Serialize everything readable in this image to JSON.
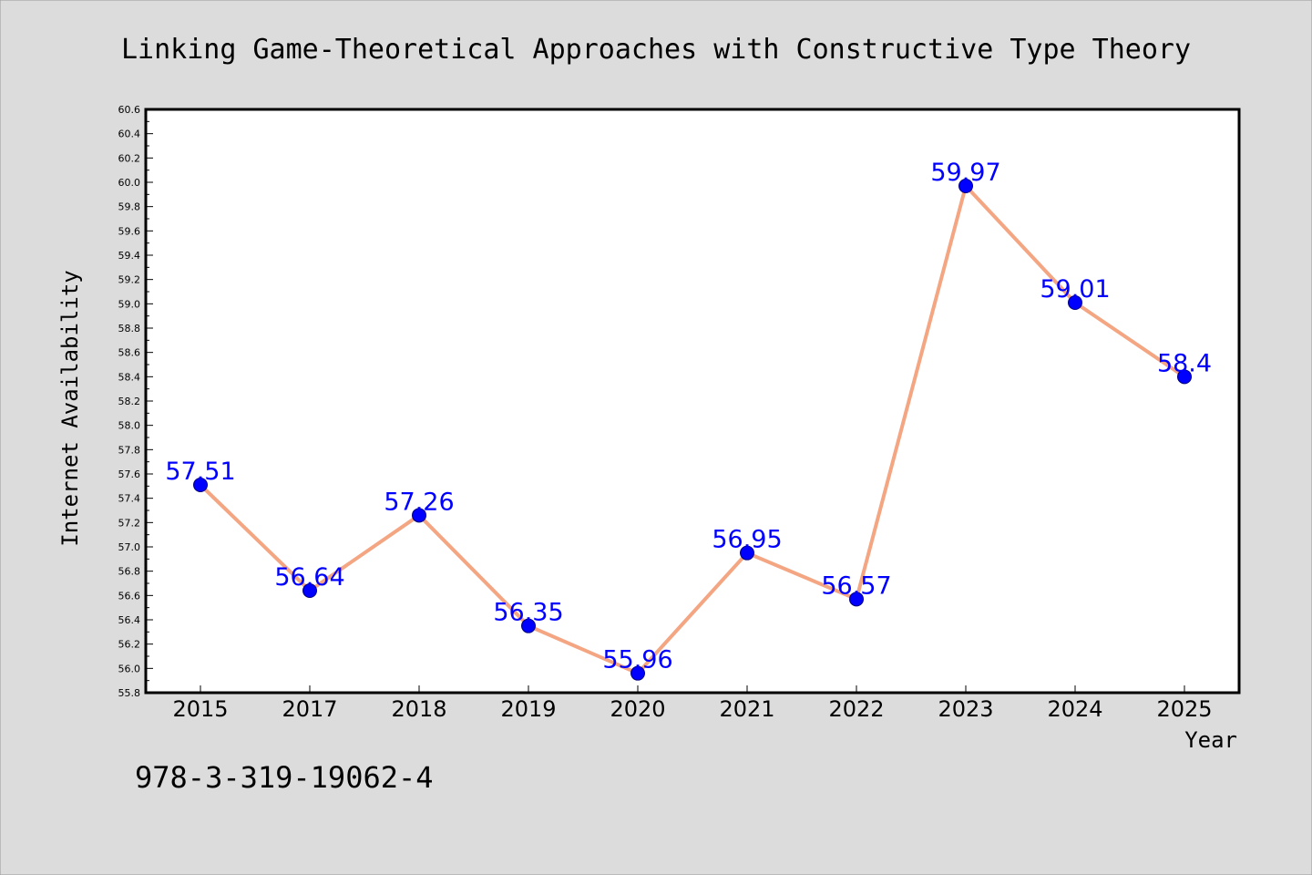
{
  "chart_data": {
    "type": "line",
    "title": "Linking Game-Theoretical Approaches with Constructive Type Theory",
    "xlabel": "Year",
    "ylabel": "Internet Availability",
    "categories": [
      "2015",
      "2017",
      "2018",
      "2019",
      "2020",
      "2021",
      "2022",
      "2023",
      "2024",
      "2025"
    ],
    "series": [
      {
        "values": [
          57.51,
          56.64,
          57.26,
          56.35,
          55.96,
          56.95,
          56.57,
          59.97,
          59.01,
          58.4
        ],
        "labels": [
          "57.51",
          "56.64",
          "57.26",
          "56.35",
          "55.96",
          "56.95",
          "56.57",
          "59.97",
          "59.01",
          "58.4"
        ]
      }
    ],
    "ylim": [
      55.8,
      60.6
    ],
    "ytick_step": 0.2,
    "grid": false,
    "legend": "none",
    "colors": {
      "line": "#f4a582",
      "marker": "#0000ff",
      "marker_edge": "#000080",
      "data_label": "#0000ff",
      "background": "#dcdcdc",
      "plot_background": "#ffffff"
    }
  },
  "annotation": "978-3-319-19062-4"
}
